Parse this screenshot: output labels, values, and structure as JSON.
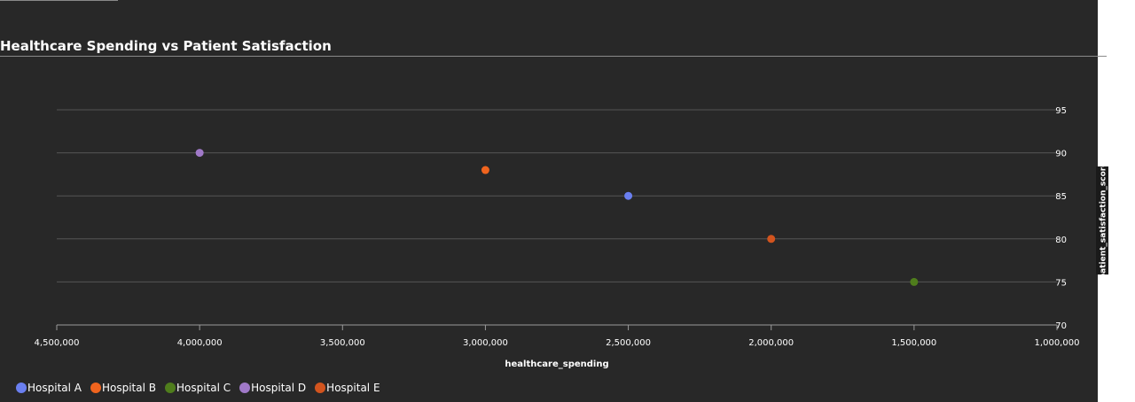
{
  "chart_data": {
    "type": "scatter",
    "title": "Healthcare Spending vs Patient Satisfaction",
    "xlabel": "healthcare_spending",
    "ylabel": "patient_satisfaction_score",
    "xlim": [
      4500000,
      1000000
    ],
    "ylim": [
      70,
      95
    ],
    "x_reversed": true,
    "x_ticks": [
      4500000,
      4000000,
      3500000,
      3000000,
      2500000,
      2000000,
      1500000,
      1000000
    ],
    "x_tick_labels": [
      "4,500,000",
      "4,000,000",
      "3,500,000",
      "3,000,000",
      "2,500,000",
      "2,000,000",
      "1,500,000",
      "1,000,000"
    ],
    "y_ticks": [
      70,
      75,
      80,
      85,
      90,
      95
    ],
    "y_tick_labels": [
      "70",
      "75",
      "80",
      "85",
      "90",
      "95"
    ],
    "y_axis_position": "right",
    "grid": true,
    "legend_position": "bottom-left",
    "series": [
      {
        "name": "Hospital A",
        "color": "#6a7ff0",
        "points": [
          {
            "x": 2500000,
            "y": 85
          }
        ]
      },
      {
        "name": "Hospital B",
        "color": "#f0641e",
        "points": [
          {
            "x": 3000000,
            "y": 88
          }
        ]
      },
      {
        "name": "Hospital C",
        "color": "#4f7d1c",
        "points": [
          {
            "x": 1500000,
            "y": 75
          }
        ]
      },
      {
        "name": "Hospital D",
        "color": "#a079c8",
        "points": [
          {
            "x": 4000000,
            "y": 90
          }
        ]
      },
      {
        "name": "Hospital E",
        "color": "#d2541e",
        "points": [
          {
            "x": 2000000,
            "y": 80
          }
        ]
      }
    ]
  }
}
